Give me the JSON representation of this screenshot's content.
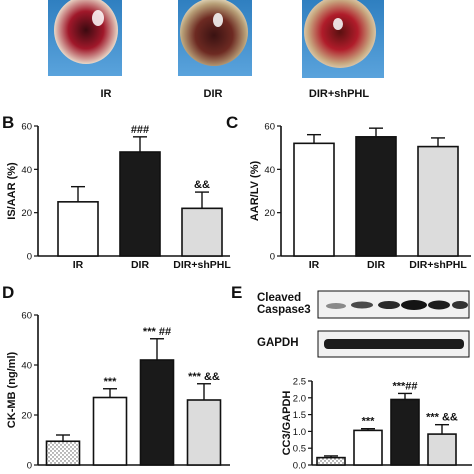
{
  "photos": {
    "labels": [
      "IR",
      "DIR",
      "DIR+shPHL"
    ]
  },
  "blot": {
    "rows": [
      "Cleaved\nCaspase3",
      "GAPDH"
    ]
  },
  "chart_data": [
    {
      "panel": "B",
      "type": "bar",
      "ylabel": "IS/AAR (%)",
      "ylim": [
        0,
        60
      ],
      "yticks": [
        0,
        20,
        40,
        60
      ],
      "categories": [
        "IR",
        "DIR",
        "DIR+shPHL"
      ],
      "values": [
        25,
        48,
        22
      ],
      "errors": [
        7,
        7,
        7.5
      ],
      "fills": [
        "#ffffff",
        "#1a1a1a",
        "#dcdcdc"
      ],
      "annotations": [
        "",
        "###",
        "&&"
      ]
    },
    {
      "panel": "C",
      "type": "bar",
      "ylabel": "AAR/LV (%)",
      "ylim": [
        0,
        60
      ],
      "yticks": [
        0,
        20,
        40,
        60
      ],
      "categories": [
        "IR",
        "DIR",
        "DIR+shPHL"
      ],
      "values": [
        52,
        55,
        50.5
      ],
      "errors": [
        4,
        4,
        4
      ],
      "fills": [
        "#ffffff",
        "#1a1a1a",
        "#dcdcdc"
      ],
      "annotations": [
        "",
        "",
        ""
      ]
    },
    {
      "panel": "D",
      "type": "bar",
      "ylabel": "CK-MB (ng/ml)",
      "ylim": [
        0,
        60
      ],
      "yticks": [
        0,
        20,
        40,
        60
      ],
      "categories": [
        "",
        "",
        "",
        ""
      ],
      "values": [
        9.5,
        27,
        42,
        26
      ],
      "errors": [
        2.5,
        3.5,
        8.5,
        6.5
      ],
      "fills": [
        "dots",
        "#ffffff",
        "#1a1a1a",
        "#dcdcdc"
      ],
      "annotations": [
        "",
        "***",
        "*** ##",
        "*** &&"
      ]
    },
    {
      "panel": "E",
      "type": "bar",
      "ylabel": "CC3/GAPDH",
      "ylim": [
        0,
        2.5
      ],
      "yticks": [
        0.0,
        0.5,
        1.0,
        1.5,
        2.0,
        2.5
      ],
      "categories": [
        "",
        "",
        "",
        ""
      ],
      "values": [
        0.22,
        1.03,
        1.95,
        0.92
      ],
      "errors": [
        0.05,
        0.05,
        0.18,
        0.28
      ],
      "fills": [
        "dots",
        "#ffffff",
        "#1a1a1a",
        "#dcdcdc"
      ],
      "annotations": [
        "",
        "***",
        "***##",
        "*** &&"
      ]
    }
  ],
  "panel_letters": [
    "B",
    "C",
    "D",
    "E"
  ]
}
